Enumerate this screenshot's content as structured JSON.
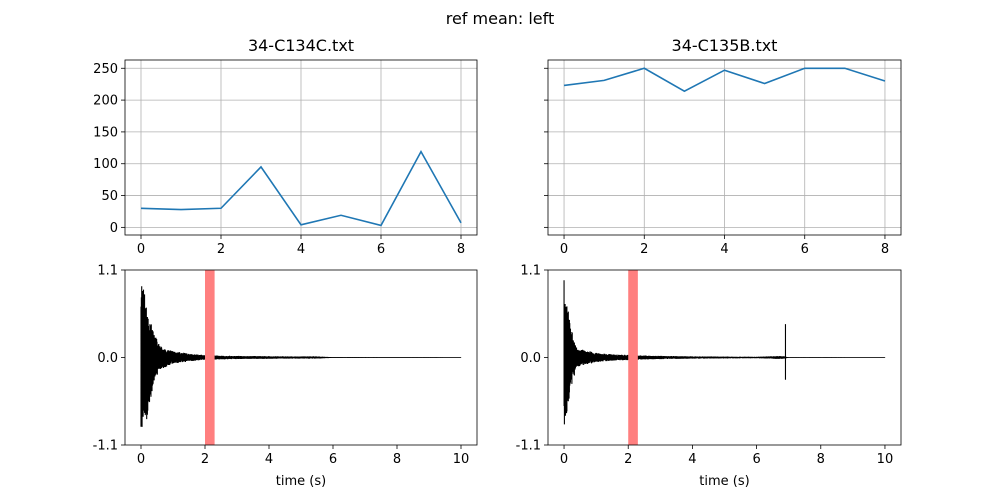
{
  "figure": {
    "suptitle": "ref mean: left"
  },
  "chart_data": [
    {
      "type": "line",
      "title": "34-C134C.txt",
      "x": [
        0,
        1,
        2,
        3,
        4,
        5,
        6,
        7,
        8
      ],
      "series": [
        {
          "values": [
            30,
            28,
            30,
            95,
            4,
            19,
            3,
            119,
            7
          ],
          "color": "#1f77b4"
        }
      ],
      "xlim": [
        -0.4,
        8.4
      ],
      "ylim": [
        -12,
        263
      ],
      "xticks": [
        0,
        2,
        4,
        6,
        8
      ],
      "yticks": [
        0,
        50,
        100,
        150,
        200,
        250
      ],
      "grid": true
    },
    {
      "type": "line",
      "title": "34-C135B.txt",
      "x": [
        0,
        1,
        2,
        3,
        4,
        5,
        6,
        7,
        8
      ],
      "series": [
        {
          "values": [
            223,
            231,
            250,
            214,
            247,
            226,
            250,
            250,
            230
          ],
          "color": "#1f77b4"
        }
      ],
      "xlim": [
        -0.4,
        8.4
      ],
      "ylim": [
        -12,
        263
      ],
      "xticks": [
        0,
        2,
        4,
        6,
        8
      ],
      "yticks": [
        0,
        50,
        100,
        150,
        200,
        250
      ],
      "ytick_labels_shown": false,
      "grid": true
    },
    {
      "type": "area",
      "xlabel": "time (s)",
      "xlim": [
        -0.5,
        10.5
      ],
      "ylim": [
        -1.1,
        1.1
      ],
      "xticks": [
        0,
        2,
        4,
        6,
        8,
        10
      ],
      "yticks": [
        "-1.1",
        "0.0",
        "1.1"
      ],
      "highlight": {
        "start": 2.0,
        "end": 2.3,
        "color": "#ff7f7f"
      },
      "waveform": {
        "end_time": 10.0,
        "color": "#000000",
        "envelope": [
          {
            "t": 0.0,
            "top": 1.0,
            "bottom": -1.0
          },
          {
            "t": 0.05,
            "top": 0.95,
            "bottom": -1.02
          },
          {
            "t": 0.2,
            "top": 0.6,
            "bottom": -0.8
          },
          {
            "t": 0.4,
            "top": 0.3,
            "bottom": -0.3
          },
          {
            "t": 0.6,
            "top": 0.15,
            "bottom": -0.15
          },
          {
            "t": 1.0,
            "top": 0.08,
            "bottom": -0.08
          },
          {
            "t": 1.5,
            "top": 0.05,
            "bottom": -0.05
          },
          {
            "t": 2.0,
            "top": 0.03,
            "bottom": -0.03
          },
          {
            "t": 3.0,
            "top": 0.02,
            "bottom": -0.02
          },
          {
            "t": 4.5,
            "top": 0.015,
            "bottom": -0.015
          },
          {
            "t": 5.5,
            "top": 0.015,
            "bottom": -0.015
          },
          {
            "t": 6.0,
            "top": 0.005,
            "bottom": -0.005
          },
          {
            "t": 10.0,
            "top": 0.002,
            "bottom": -0.002
          }
        ],
        "spikes": []
      }
    },
    {
      "type": "area",
      "xlabel": "time (s)",
      "xlim": [
        -0.5,
        10.5
      ],
      "ylim": [
        -1.1,
        1.1
      ],
      "xticks": [
        0,
        2,
        4,
        6,
        8,
        10
      ],
      "yticks": [
        "-1.1",
        "0.0",
        "1.1"
      ],
      "highlight": {
        "start": 2.0,
        "end": 2.3,
        "color": "#ff7f7f"
      },
      "waveform": {
        "end_time": 10.0,
        "color": "#000000",
        "envelope": [
          {
            "t": 0.0,
            "top": 1.0,
            "bottom": -0.9
          },
          {
            "t": 0.05,
            "top": 0.95,
            "bottom": -0.85
          },
          {
            "t": 0.2,
            "top": 0.4,
            "bottom": -0.4
          },
          {
            "t": 0.4,
            "top": 0.12,
            "bottom": -0.12
          },
          {
            "t": 1.0,
            "top": 0.06,
            "bottom": -0.06
          },
          {
            "t": 1.5,
            "top": 0.04,
            "bottom": -0.04
          },
          {
            "t": 2.5,
            "top": 0.025,
            "bottom": -0.025
          },
          {
            "t": 4.0,
            "top": 0.015,
            "bottom": -0.015
          },
          {
            "t": 6.0,
            "top": 0.01,
            "bottom": -0.01
          },
          {
            "t": 6.8,
            "top": 0.02,
            "bottom": -0.02
          },
          {
            "t": 7.0,
            "top": 0.003,
            "bottom": -0.003
          },
          {
            "t": 10.0,
            "top": 0.002,
            "bottom": -0.002
          }
        ],
        "spikes": [
          {
            "t": 6.9,
            "top": 0.42,
            "bottom": -0.28
          }
        ]
      }
    }
  ]
}
